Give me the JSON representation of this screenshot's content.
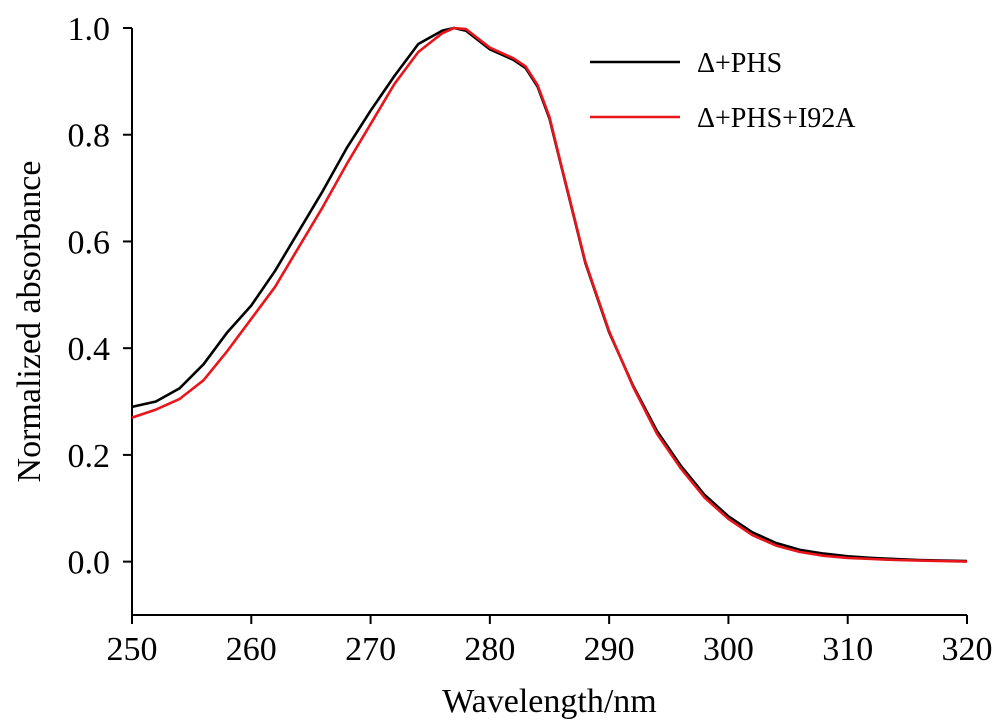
{
  "chart_data": {
    "type": "line",
    "title": "",
    "xlabel": "Wavelength/nm",
    "ylabel": "Normalized absorbance",
    "xlim": [
      250,
      320
    ],
    "ylim": [
      -0.1,
      1.0
    ],
    "xticks": [
      "250",
      "260",
      "270",
      "280",
      "290",
      "300",
      "310",
      "320"
    ],
    "yticks": [
      "0.0",
      "0.2",
      "0.4",
      "0.6",
      "0.8",
      "1.0"
    ],
    "grid": false,
    "legend_position": "top-right",
    "series": [
      {
        "name": "Δ+PHS",
        "color": "#000000",
        "x": [
          250,
          252,
          254,
          256,
          258,
          260,
          262,
          264,
          266,
          268,
          270,
          272,
          274,
          276,
          277,
          278,
          280,
          282,
          283,
          284,
          285,
          286,
          287,
          288,
          290,
          292,
          294,
          296,
          298,
          300,
          302,
          304,
          306,
          308,
          310,
          312,
          314,
          316,
          318,
          320
        ],
        "y": [
          0.29,
          0.3,
          0.325,
          0.37,
          0.43,
          0.48,
          0.545,
          0.62,
          0.695,
          0.775,
          0.845,
          0.91,
          0.97,
          0.995,
          1.0,
          0.995,
          0.96,
          0.94,
          0.925,
          0.89,
          0.83,
          0.74,
          0.65,
          0.56,
          0.43,
          0.33,
          0.245,
          0.18,
          0.125,
          0.085,
          0.055,
          0.035,
          0.022,
          0.015,
          0.01,
          0.007,
          0.005,
          0.003,
          0.002,
          0.001
        ]
      },
      {
        "name": "Δ+PHS+I92A",
        "color": "#e8151b",
        "x": [
          250,
          252,
          254,
          256,
          258,
          260,
          262,
          264,
          266,
          268,
          270,
          272,
          274,
          276,
          277,
          278,
          280,
          282,
          283,
          284,
          285,
          286,
          287,
          288,
          290,
          292,
          294,
          296,
          298,
          300,
          302,
          304,
          306,
          308,
          310,
          312,
          314,
          316,
          318,
          320
        ],
        "y": [
          0.27,
          0.285,
          0.305,
          0.34,
          0.395,
          0.455,
          0.515,
          0.59,
          0.665,
          0.745,
          0.82,
          0.895,
          0.955,
          0.99,
          1.0,
          0.998,
          0.963,
          0.943,
          0.928,
          0.893,
          0.833,
          0.742,
          0.652,
          0.562,
          0.432,
          0.328,
          0.24,
          0.175,
          0.12,
          0.08,
          0.05,
          0.03,
          0.018,
          0.011,
          0.007,
          0.005,
          0.003,
          0.002,
          0.001,
          0.0
        ]
      }
    ]
  }
}
